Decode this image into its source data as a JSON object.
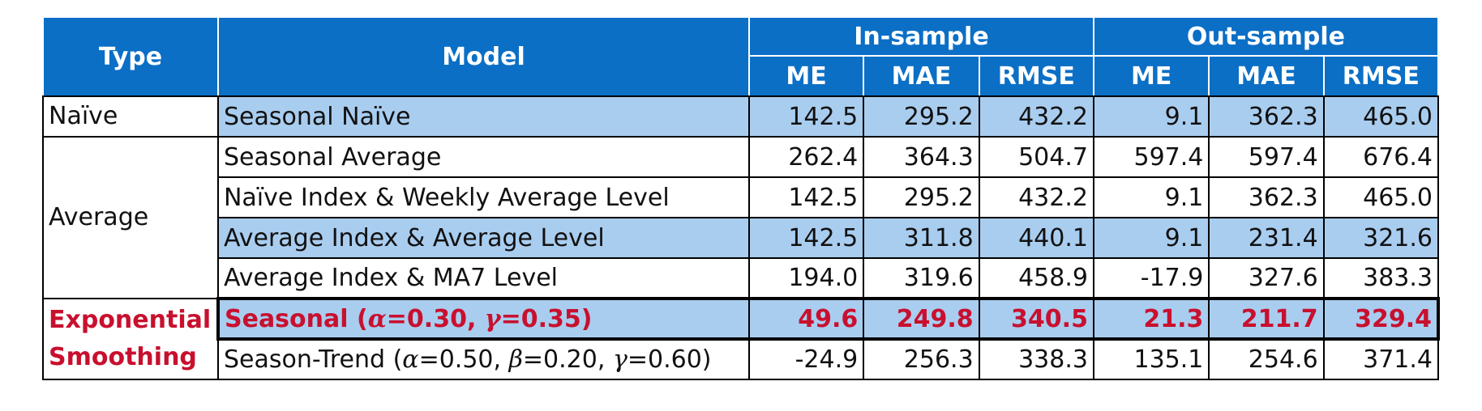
{
  "header": {
    "type": "Type",
    "model": "Model",
    "in_sample": "In-sample",
    "out_sample": "Out-sample",
    "metrics": [
      "ME",
      "MAE",
      "RMSE",
      "ME",
      "MAE",
      "RMSE"
    ]
  },
  "groups": [
    {
      "type": "Naïve",
      "rows": [
        {
          "model_parts": [
            "Seasonal Naïve"
          ],
          "values": [
            "142.5",
            "295.2",
            "432.2",
            "9.1",
            "362.3",
            "465.0"
          ],
          "highlight": true
        }
      ]
    },
    {
      "type": "Average",
      "rows": [
        {
          "model_parts": [
            "Seasonal Average"
          ],
          "values": [
            "262.4",
            "364.3",
            "504.7",
            "597.4",
            "597.4",
            "676.4"
          ],
          "highlight": false
        },
        {
          "model_parts": [
            "Naïve Index & Weekly Average Level"
          ],
          "values": [
            "142.5",
            "295.2",
            "432.2",
            "9.1",
            "362.3",
            "465.0"
          ],
          "highlight": false
        },
        {
          "model_parts": [
            "Average Index & Average Level"
          ],
          "values": [
            "142.5",
            "311.8",
            "440.1",
            "9.1",
            "231.4",
            "321.6"
          ],
          "highlight": true
        },
        {
          "model_parts": [
            "Average Index & MA7 Level"
          ],
          "values": [
            "194.0",
            "319.6",
            "458.9",
            "-17.9",
            "327.6",
            "383.3"
          ],
          "highlight": false
        }
      ]
    },
    {
      "type_lines": [
        "Exponential",
        "Smoothing"
      ],
      "rows": [
        {
          "model_parts": [
            "Seasonal (",
            "α",
            "=0.30, ",
            "γ",
            "=0.35)"
          ],
          "values": [
            "49.6",
            "249.8",
            "340.5",
            "21.3",
            "211.7",
            "329.4"
          ],
          "highlight": true,
          "best": true
        },
        {
          "model_parts": [
            "Season-Trend (",
            "α",
            "=0.50, ",
            "β",
            "=0.20, ",
            "γ",
            "=0.60)"
          ],
          "values": [
            "-24.9",
            "256.3",
            "338.3",
            "135.1",
            "254.6",
            "371.4"
          ],
          "highlight": false
        }
      ]
    }
  ]
}
